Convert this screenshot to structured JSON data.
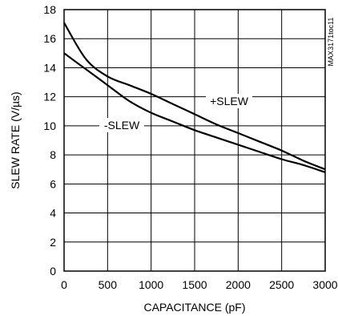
{
  "chart_data": {
    "type": "line",
    "title": "",
    "xlabel": "CAPACITANCE (pF)",
    "ylabel": "SLEW RATE (V/µs)",
    "xlim": [
      0,
      3000
    ],
    "ylim": [
      0,
      18
    ],
    "x_ticks": [
      0,
      500,
      1000,
      1500,
      2000,
      2500,
      3000
    ],
    "y_ticks": [
      0,
      2,
      4,
      6,
      8,
      10,
      12,
      14,
      16,
      18
    ],
    "x_tick_labels": [
      "0",
      "500",
      "1000",
      "1500",
      "2000",
      "2500",
      "3000"
    ],
    "y_tick_labels": [
      "0",
      "2",
      "4",
      "6",
      "8",
      "10",
      "12",
      "14",
      "16",
      "18"
    ],
    "grid": true,
    "legend": "none",
    "side_code": "MAX3171toc11",
    "series": [
      {
        "name": "+SLEW",
        "x": [
          0,
          250,
          500,
          750,
          1000,
          1250,
          1500,
          1750,
          2000,
          2250,
          2500,
          2750,
          3000
        ],
        "y": [
          17.1,
          14.6,
          13.4,
          12.8,
          12.2,
          11.5,
          10.8,
          10.1,
          9.5,
          8.9,
          8.3,
          7.6,
          7.0
        ]
      },
      {
        "name": "-SLEW",
        "x": [
          0,
          250,
          500,
          750,
          1000,
          1250,
          1500,
          1750,
          2000,
          2250,
          2500,
          2750,
          3000
        ],
        "y": [
          15.0,
          13.9,
          12.8,
          11.7,
          10.9,
          10.3,
          9.7,
          9.2,
          8.7,
          8.2,
          7.7,
          7.3,
          6.8
        ]
      }
    ]
  }
}
